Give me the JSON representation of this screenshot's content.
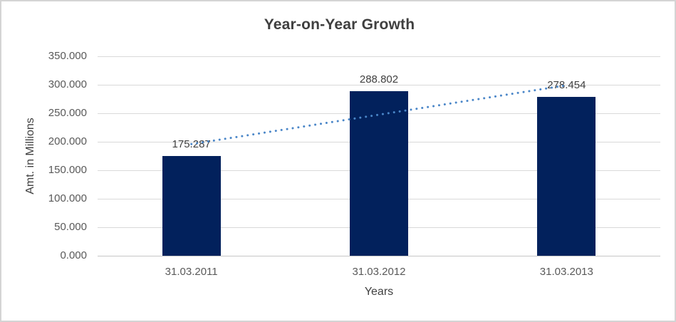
{
  "chart_data": {
    "type": "bar",
    "title": "Year-on-Year Growth",
    "categories": [
      "31.03.2011",
      "31.03.2012",
      "31.03.2013"
    ],
    "values": [
      175.287,
      288.802,
      278.454
    ],
    "data_labels": [
      "175.287",
      "288.802",
      "278.454"
    ],
    "xlabel": "Years",
    "ylabel": "Amt. in Millions",
    "ylim": [
      0,
      350
    ],
    "ytick_step": 50,
    "ytick_labels": [
      "0.000",
      "50.000",
      "100.000",
      "150.000",
      "200.000",
      "250.000",
      "300.000",
      "350.000"
    ],
    "grid": true,
    "legend": false,
    "bar_color": "#02215C",
    "trendline": {
      "type": "linear",
      "style": "dotted",
      "color": "#4A86C8"
    },
    "colors": {
      "gridline": "#D9D9D9",
      "axis_line": "#C6C6C6",
      "tick_label": "#595959",
      "data_label": "#404040",
      "title": "#3F3F3F",
      "border": "#D4D4D4"
    }
  }
}
